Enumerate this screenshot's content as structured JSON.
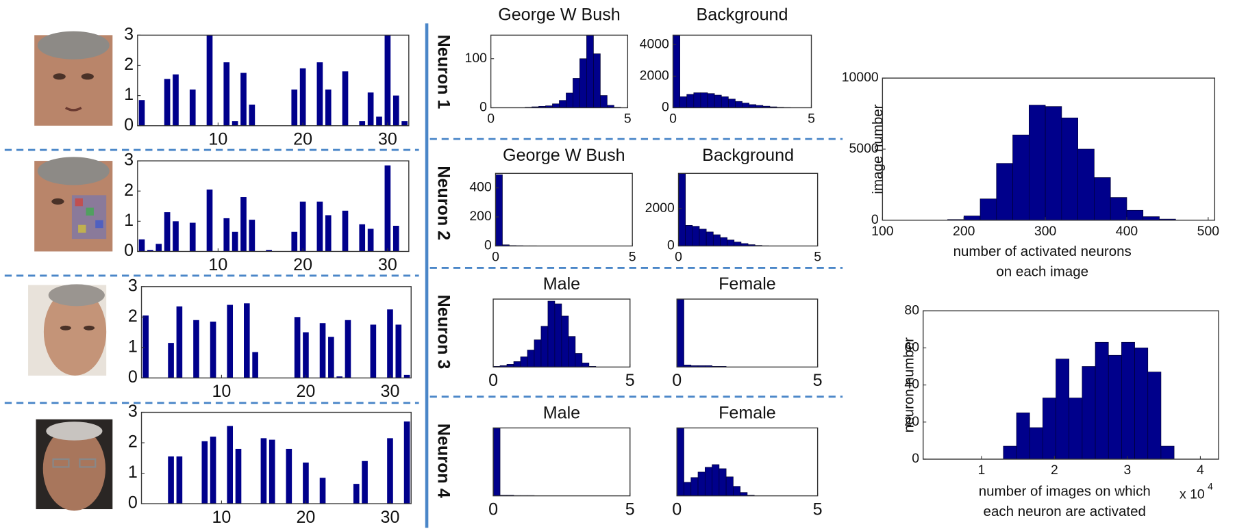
{
  "row_labels": [
    "Neuron 1",
    "Neuron 2",
    "Neuron 3",
    "Neuron 4"
  ],
  "chart_data": [
    {
      "type": "bar",
      "color": "#00008b",
      "x": [
        1,
        4,
        5,
        7,
        9,
        11,
        12,
        13,
        14,
        19,
        20,
        22,
        23,
        25,
        27,
        28,
        29,
        30,
        31,
        32
      ],
      "values": [
        0.85,
        1.55,
        1.7,
        1.2,
        3,
        2.1,
        0.15,
        1.75,
        0.7,
        1.2,
        1.9,
        2.1,
        1.2,
        1.8,
        0.15,
        1.1,
        0.3,
        3,
        1.0,
        0.15
      ],
      "xlim": [
        0.5,
        32.5
      ],
      "ylim": [
        0,
        3
      ],
      "xticks": [
        10,
        20,
        30
      ],
      "yticks": [
        0,
        1,
        2,
        3
      ]
    },
    {
      "type": "bar",
      "color": "#00008b",
      "x": [
        1,
        2,
        3,
        4,
        5,
        7,
        9,
        11,
        12,
        13,
        14,
        16,
        19,
        20,
        22,
        23,
        25,
        27,
        28,
        30,
        31
      ],
      "values": [
        0.4,
        0.05,
        0.25,
        1.3,
        1.0,
        0.95,
        2.05,
        1.1,
        0.65,
        1.8,
        1.05,
        0.05,
        0.65,
        1.65,
        1.65,
        1.2,
        1.35,
        0.9,
        0.75,
        2.85,
        0.85
      ],
      "xlim": [
        0.5,
        32.5
      ],
      "ylim": [
        0,
        3
      ],
      "xticks": [
        10,
        20,
        30
      ],
      "yticks": [
        0,
        1,
        2,
        3
      ]
    },
    {
      "type": "bar",
      "color": "#00008b",
      "x": [
        1,
        4,
        5,
        7,
        9,
        11,
        13,
        14,
        19,
        20,
        22,
        23,
        24,
        25,
        28,
        30,
        31,
        32
      ],
      "values": [
        2.05,
        1.15,
        2.35,
        1.9,
        1.85,
        2.4,
        2.45,
        0.85,
        2.0,
        1.5,
        1.8,
        1.35,
        0.05,
        1.9,
        1.75,
        2.25,
        1.75,
        0.1
      ],
      "xlim": [
        0.5,
        32.5
      ],
      "ylim": [
        0,
        3
      ],
      "xticks": [
        10,
        20,
        30
      ],
      "yticks": [
        0,
        1,
        2,
        3
      ]
    },
    {
      "type": "bar",
      "color": "#00008b",
      "x": [
        4,
        5,
        8,
        9,
        11,
        12,
        15,
        16,
        18,
        20,
        22,
        26,
        27,
        30,
        32
      ],
      "values": [
        1.55,
        1.55,
        2.05,
        2.2,
        2.55,
        1.8,
        2.15,
        2.1,
        1.8,
        1.35,
        0.85,
        0.65,
        1.4,
        2.15,
        2.7
      ],
      "xlim": [
        0.5,
        32.5
      ],
      "ylim": [
        0,
        3
      ],
      "xticks": [
        10,
        20,
        30
      ],
      "yticks": [
        0,
        1,
        2,
        3
      ]
    },
    {
      "type": "histogram",
      "title": "George W Bush",
      "color": "#00008b",
      "bins": [
        0,
        0.25,
        0.5,
        0.75,
        1,
        1.25,
        1.5,
        1.75,
        2,
        2.25,
        2.5,
        2.75,
        3,
        3.25,
        3.5,
        3.75,
        4,
        4.25,
        4.5,
        4.75,
        5
      ],
      "values": [
        0,
        0,
        0,
        0,
        0,
        1,
        2,
        3,
        4,
        8,
        15,
        30,
        60,
        100,
        148,
        110,
        25,
        5,
        1,
        0
      ],
      "xlim": [
        0,
        5
      ],
      "ylim": [
        0,
        148
      ],
      "xticks": [
        0,
        5
      ],
      "yticks": [
        0,
        100
      ]
    },
    {
      "type": "histogram",
      "title": "Background",
      "color": "#00008b",
      "bins": [
        0,
        0.25,
        0.5,
        0.75,
        1,
        1.25,
        1.5,
        1.75,
        2,
        2.25,
        2.5,
        2.75,
        3,
        3.25,
        3.5,
        3.75,
        4,
        4.25,
        4.5,
        4.75,
        5
      ],
      "values": [
        4600,
        700,
        850,
        950,
        950,
        900,
        800,
        700,
        550,
        400,
        300,
        200,
        150,
        100,
        60,
        30,
        15,
        5,
        0,
        0
      ],
      "xlim": [
        0,
        5
      ],
      "ylim": [
        0,
        4600
      ],
      "xticks": [
        0,
        5
      ],
      "yticks": [
        0,
        2000,
        4000
      ]
    },
    {
      "type": "histogram",
      "title": "George W Bush",
      "color": "#00008b",
      "bins": [
        0,
        0.25,
        0.5,
        0.75,
        1,
        1.25,
        1.5,
        1.75,
        2,
        2.25,
        2.5,
        2.75,
        3,
        3.25,
        3.5,
        3.75,
        4,
        4.25,
        4.5,
        4.75,
        5
      ],
      "values": [
        490,
        8,
        3,
        2,
        1,
        1,
        0,
        0,
        0,
        0,
        0,
        0,
        0,
        0,
        0,
        0,
        0,
        0,
        0,
        0
      ],
      "xlim": [
        0,
        5
      ],
      "ylim": [
        0,
        500
      ],
      "xticks": [
        0,
        5
      ],
      "yticks": [
        0,
        200,
        400
      ]
    },
    {
      "type": "histogram",
      "title": "Background",
      "color": "#00008b",
      "bins": [
        0,
        0.25,
        0.5,
        0.75,
        1,
        1.25,
        1.5,
        1.75,
        2,
        2.25,
        2.5,
        2.75,
        3,
        3.25,
        3.5,
        3.75,
        4,
        4.25,
        4.5,
        4.75,
        5
      ],
      "values": [
        3875,
        1100,
        1050,
        900,
        750,
        600,
        450,
        320,
        210,
        130,
        70,
        30,
        10,
        3,
        0,
        0,
        0,
        0,
        0,
        0
      ],
      "xlim": [
        0,
        5
      ],
      "ylim": [
        0,
        3875
      ],
      "xticks": [
        0,
        5
      ],
      "yticks": [
        0,
        2000
      ]
    },
    {
      "type": "histogram",
      "title": "Male",
      "color": "#00008b",
      "bins": [
        0,
        0.25,
        0.5,
        0.75,
        1,
        1.25,
        1.5,
        1.75,
        2,
        2.25,
        2.5,
        2.75,
        3,
        3.25,
        3.5,
        3.75,
        4,
        4.25,
        4.5,
        4.75,
        5
      ],
      "values": [
        0.01,
        0.02,
        0.04,
        0.08,
        0.15,
        0.25,
        0.4,
        0.6,
        0.97,
        0.93,
        0.75,
        0.45,
        0.2,
        0.06,
        0.01,
        0,
        0,
        0,
        0,
        0
      ],
      "xlim": [
        0,
        5
      ],
      "ylim": [
        0,
        1
      ],
      "xticks": [
        0,
        5
      ]
    },
    {
      "type": "histogram",
      "title": "Female",
      "color": "#00008b",
      "bins": [
        0,
        0.25,
        0.5,
        0.75,
        1,
        1.25,
        1.5,
        1.75,
        2,
        2.25,
        2.5,
        2.75,
        3,
        3.25,
        3.5,
        3.75,
        4,
        4.25,
        4.5,
        4.75,
        5
      ],
      "values": [
        1,
        0.03,
        0.02,
        0.02,
        0.02,
        0.01,
        0.01,
        0,
        0,
        0,
        0,
        0,
        0,
        0,
        0,
        0,
        0,
        0,
        0,
        0
      ],
      "xlim": [
        0,
        5
      ],
      "ylim": [
        0,
        1
      ],
      "xticks": [
        0,
        5
      ]
    },
    {
      "type": "histogram",
      "title": "Male",
      "color": "#00008b",
      "bins": [
        0,
        0.25,
        0.5,
        0.75,
        1,
        1.25,
        1.5,
        1.75,
        2,
        2.25,
        2.5,
        2.75,
        3,
        3.25,
        3.5,
        3.75,
        4,
        4.25,
        4.5,
        4.75,
        5
      ],
      "values": [
        1,
        0.01,
        0.01,
        0.005,
        0.005,
        0.005,
        0,
        0,
        0,
        0,
        0,
        0,
        0,
        0,
        0,
        0,
        0,
        0,
        0,
        0
      ],
      "xlim": [
        0,
        5
      ],
      "ylim": [
        0,
        1
      ],
      "xticks": [
        0,
        5
      ]
    },
    {
      "type": "histogram",
      "title": "Female",
      "color": "#00008b",
      "bins": [
        0,
        0.25,
        0.5,
        0.75,
        1,
        1.25,
        1.5,
        1.75,
        2,
        2.25,
        2.5,
        2.75,
        3,
        3.25,
        3.5,
        3.75,
        4,
        4.25,
        4.5,
        4.75,
        5
      ],
      "values": [
        1,
        0.2,
        0.27,
        0.35,
        0.42,
        0.46,
        0.4,
        0.28,
        0.14,
        0.05,
        0.01,
        0,
        0,
        0,
        0,
        0,
        0,
        0,
        0,
        0
      ],
      "xlim": [
        0,
        5
      ],
      "ylim": [
        0,
        1
      ],
      "xticks": [
        0,
        5
      ]
    },
    {
      "type": "histogram",
      "color": "#00008b",
      "ylabel": "image number",
      "xlabel": [
        "number of activated neurons",
        "on each image"
      ],
      "bins": [
        180,
        200,
        220,
        240,
        260,
        280,
        300,
        320,
        340,
        360,
        380,
        400,
        420,
        440,
        460
      ],
      "values": [
        50,
        300,
        1500,
        4000,
        6000,
        8100,
        8000,
        7200,
        5000,
        3000,
        1600,
        700,
        250,
        80
      ],
      "xlim": [
        100,
        508
      ],
      "ylim": [
        0,
        10000
      ],
      "xticks": [
        100,
        200,
        300,
        400,
        500
      ],
      "yticks": [
        0,
        5000,
        10000
      ]
    },
    {
      "type": "histogram",
      "color": "#00008b",
      "ylabel": "neuron number",
      "xlabel": [
        "number of images on which",
        "each neuron are activated"
      ],
      "x_multiplier": "x 10",
      "x_multiplier_exponent": "4",
      "bins": [
        13000,
        14800,
        16600,
        18400,
        20200,
        22000,
        23800,
        25600,
        27400,
        29200,
        31000,
        32800,
        34600,
        36400
      ],
      "values": [
        7,
        25,
        17,
        33,
        54,
        33,
        50,
        63,
        56,
        63,
        60,
        47,
        7
      ],
      "xlim": [
        2000,
        42500
      ],
      "ylim": [
        0,
        80
      ],
      "xticks": [
        {
          "value": 10000,
          "label": "1"
        },
        {
          "value": 20000,
          "label": "2"
        },
        {
          "value": 30000,
          "label": "3"
        },
        {
          "value": 40000,
          "label": "4"
        }
      ],
      "yticks": [
        0,
        20,
        40,
        60,
        80
      ]
    }
  ]
}
